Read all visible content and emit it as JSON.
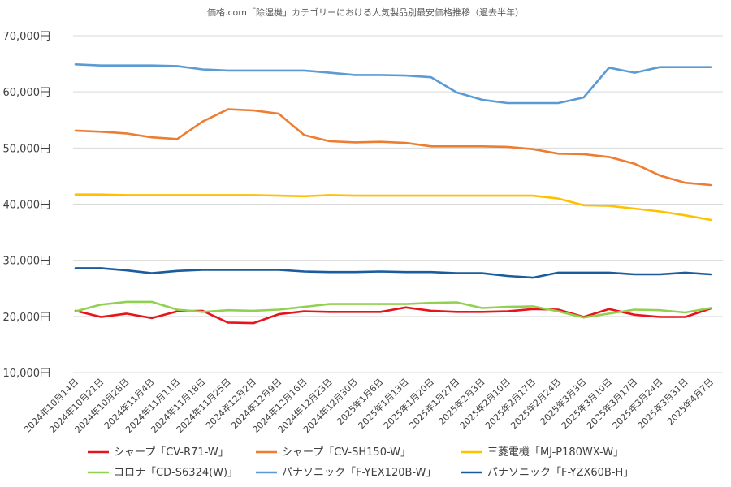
{
  "chart_data": {
    "type": "line",
    "title": "価格.com「除湿機」カテゴリーにおける人気製品別最安価格推移（過去半年）",
    "xlabel": "",
    "ylabel": "",
    "ylim": [
      10000,
      70000
    ],
    "yticks": [
      10000,
      20000,
      30000,
      40000,
      50000,
      60000,
      70000
    ],
    "ytick_labels": [
      "10,000円",
      "20,000円",
      "30,000円",
      "40,000円",
      "50,000円",
      "60,000円",
      "70,000円"
    ],
    "grid": true,
    "legend_position": "bottom",
    "categories": [
      "2024年10月14日",
      "2024年10月21日",
      "2024年10月28日",
      "2024年11月4日",
      "2024年11月11日",
      "2024年11月18日",
      "2024年11月25日",
      "2024年12月2日",
      "2024年12月9日",
      "2024年12月16日",
      "2024年12月23日",
      "2024年12月30日",
      "2025年1月6日",
      "2025年1月13日",
      "2025年1月20日",
      "2025年1月27日",
      "2025年2月3日",
      "2025年2月10日",
      "2025年2月17日",
      "2025年2月24日",
      "2025年3月3日",
      "2025年3月10日",
      "2025年3月17日",
      "2025年3月24日",
      "2025年3月31日",
      "2025年4月7日"
    ],
    "series": [
      {
        "name": "シャープ「CV-R71-W」",
        "color": "#e8141c",
        "values": [
          21000,
          19900,
          20500,
          19700,
          20900,
          21000,
          18900,
          18800,
          20400,
          20900,
          20800,
          20800,
          20800,
          21600,
          21000,
          20800,
          20800,
          20900,
          21300,
          21200,
          19900,
          21300,
          20300,
          19900,
          19900,
          21400
        ]
      },
      {
        "name": "シャープ「CV-SH150-W」",
        "color": "#ed7d31",
        "values": [
          53100,
          52900,
          52600,
          51900,
          51600,
          54700,
          56900,
          56700,
          56100,
          52300,
          51200,
          51000,
          51100,
          50900,
          50300,
          50300,
          50300,
          50200,
          49800,
          49000,
          48900,
          48400,
          47200,
          45100,
          43800,
          43400
        ]
      },
      {
        "name": "三菱電機「MJ-P180WX-W」",
        "color": "#ffc000",
        "values": [
          41700,
          41700,
          41600,
          41600,
          41600,
          41600,
          41600,
          41600,
          41500,
          41400,
          41600,
          41500,
          41500,
          41500,
          41500,
          41500,
          41500,
          41500,
          41500,
          41000,
          39800,
          39700,
          39200,
          38700,
          38000,
          37200
        ]
      },
      {
        "name": "コロナ「CD-S6324(W)」",
        "color": "#92d050",
        "values": [
          20900,
          22100,
          22600,
          22600,
          21200,
          20800,
          21100,
          21000,
          21200,
          21700,
          22200,
          22200,
          22200,
          22200,
          22400,
          22500,
          21500,
          21700,
          21800,
          20900,
          19800,
          20500,
          21200,
          21100,
          20700,
          21500
        ]
      },
      {
        "name": "パナソニック「F-YEX120B-W」",
        "color": "#5b9bd5",
        "values": [
          64900,
          64700,
          64700,
          64700,
          64600,
          64000,
          63800,
          63800,
          63800,
          63800,
          63400,
          63000,
          63000,
          62900,
          62600,
          59900,
          58600,
          58000,
          58000,
          58000,
          59000,
          64300,
          63400,
          64400,
          64400,
          64400
        ]
      },
      {
        "name": "パナソニック「F-YZX60B-H」",
        "color": "#1a5c9c",
        "values": [
          28600,
          28600,
          28200,
          27700,
          28100,
          28300,
          28300,
          28300,
          28300,
          28000,
          27900,
          27900,
          28000,
          27900,
          27900,
          27700,
          27700,
          27200,
          26900,
          27800,
          27800,
          27800,
          27500,
          27500,
          27800,
          27500
        ]
      }
    ]
  }
}
